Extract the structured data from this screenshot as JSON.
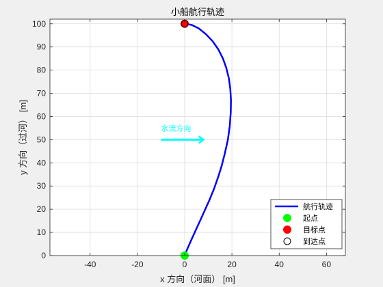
{
  "chart_data": {
    "type": "line",
    "title": "小船航行轨迹",
    "xlabel": "x 方向（河面） [m]",
    "ylabel": "y 方向（过河） [m]",
    "xlim": [
      -57,
      68
    ],
    "ylim": [
      0,
      102
    ],
    "xticks": [
      -40,
      -20,
      0,
      20,
      40,
      60
    ],
    "yticks": [
      0,
      10,
      20,
      30,
      40,
      50,
      60,
      70,
      80,
      90,
      100
    ],
    "grid": true,
    "legend_position": "bottom-right",
    "series": [
      {
        "name": "航行轨迹",
        "color": "#0000ff",
        "x": [
          0,
          1,
          2.5,
          4.5,
          6.5,
          8.5,
          10.5,
          12.5,
          14.2,
          15.6,
          17,
          18.3,
          19.1,
          19.5,
          19.6,
          19.3,
          18.7,
          17.6,
          16.2,
          14.2,
          11.8,
          9,
          6,
          3,
          0.5,
          0
        ],
        "y": [
          0,
          2.5,
          6,
          10.5,
          15,
          19.5,
          24,
          29,
          34,
          38.5,
          44,
          50,
          56,
          62,
          67,
          72,
          76.5,
          81,
          85,
          89,
          92.5,
          95.5,
          98,
          99.5,
          100,
          100
        ]
      }
    ],
    "markers": [
      {
        "name": "起点",
        "x": 0,
        "y": 0,
        "color": "#00ff00"
      },
      {
        "name": "目标点",
        "x": 0,
        "y": 100,
        "color": "#ff0000"
      },
      {
        "name": "到达点",
        "x": 0,
        "y": 100,
        "color": "none"
      }
    ],
    "flow_annotation": {
      "text": "水流方向",
      "color": "#00ffff",
      "x_start": -10,
      "x_end": 8,
      "y": 50
    }
  }
}
